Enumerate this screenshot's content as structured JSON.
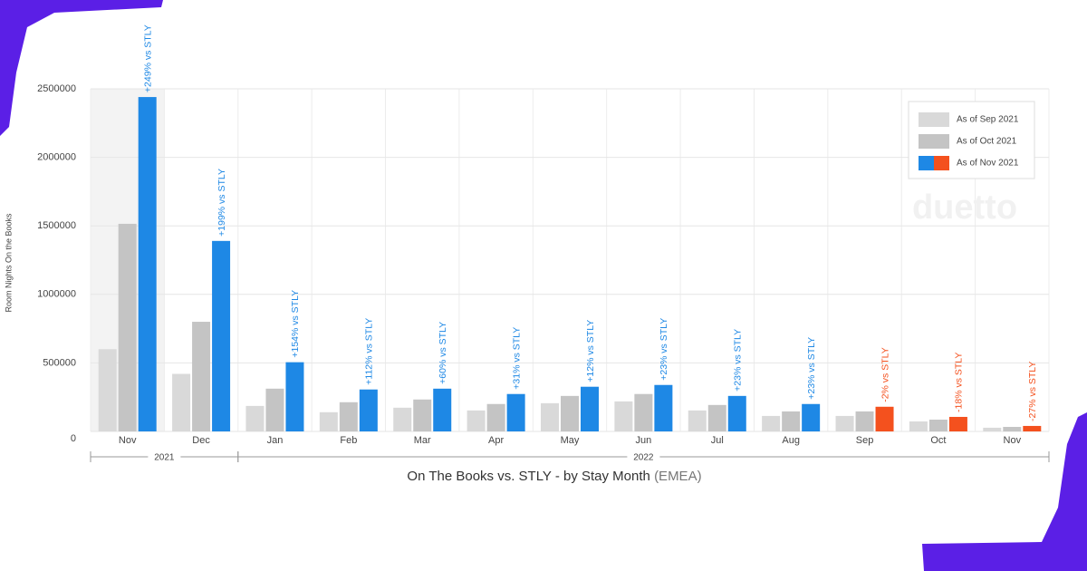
{
  "chart_data": {
    "type": "bar",
    "y_label": "Room Nights On the Books",
    "title": "On The Books vs. STLY - by Stay Month",
    "region": "(EMEA)",
    "watermark": "duetto",
    "categories": [
      "Nov",
      "Dec",
      "Jan",
      "Feb",
      "Mar",
      "Apr",
      "May",
      "Jun",
      "Jul",
      "Aug",
      "Sep",
      "Oct",
      "Nov"
    ],
    "groups": [
      {
        "label": "2021",
        "count": 2
      },
      {
        "label": "2022",
        "count": 11
      }
    ],
    "highlight_category": 0,
    "series": [
      {
        "name": "As of Sep 2021",
        "color": "#d9d9d9",
        "values": [
          600000,
          420000,
          186000,
          140000,
          173000,
          153000,
          206000,
          219000,
          153000,
          113000,
          113000,
          73000,
          27000
        ]
      },
      {
        "name": "As of Oct 2021",
        "color": "#c4c4c4",
        "values": [
          1515000,
          800000,
          312000,
          213000,
          233000,
          200000,
          259000,
          273000,
          193000,
          146000,
          146000,
          86000,
          33000
        ]
      },
      {
        "name": "As of Nov 2021",
        "colors": [
          "#1e88e5",
          "#1e88e5",
          "#1e88e5",
          "#1e88e5",
          "#1e88e5",
          "#1e88e5",
          "#1e88e5",
          "#1e88e5",
          "#1e88e5",
          "#1e88e5",
          "#f4511e",
          "#f4511e",
          "#f4511e"
        ],
        "values": [
          2440000,
          1390000,
          505000,
          306000,
          312000,
          273000,
          326000,
          339000,
          259000,
          200000,
          180000,
          106000,
          40000
        ],
        "annotations": [
          "+249% vs STLY",
          "+199% vs STLY",
          "+154% vs STLY",
          "+112% vs STLY",
          "+60% vs STLY",
          "+31% vs STLY",
          "+12% vs STLY",
          "+23% vs STLY",
          "+23% vs STLY",
          "+23% vs STLY",
          "-2% vs STLY",
          "-18% vs STLY",
          "-27% vs STLY"
        ]
      }
    ],
    "ylim": [
      0,
      2500000
    ],
    "yticks": [
      0,
      500000,
      1000000,
      1500000,
      2000000,
      2500000
    ],
    "grid": true,
    "legend": "top-right"
  }
}
